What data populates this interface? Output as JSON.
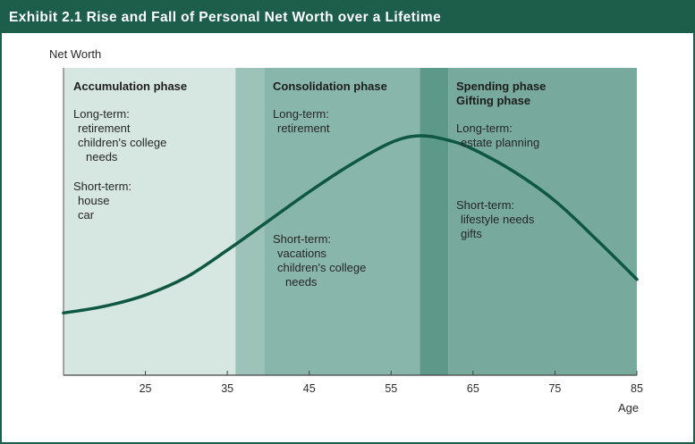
{
  "title": "Exhibit 2.1 Rise and Fall of Personal Net Worth over a Lifetime",
  "colors": {
    "frame": "#1c5e4a",
    "accumulation": "#d6e6e1",
    "transition_1": "#9dc2b7",
    "consolidation": "#89b6aa",
    "transition_2": "#5d9988",
    "spending": "#77aa9c",
    "curve": "#0e5742"
  },
  "chart_data": {
    "type": "line",
    "title": "Exhibit 2.1 Rise and Fall of Personal Net Worth over a Lifetime",
    "xlabel": "Age",
    "ylabel": "Net Worth",
    "xlim": [
      15,
      85
    ],
    "ylim": [
      0,
      100
    ],
    "xticks": [
      25,
      35,
      45,
      55,
      65,
      75,
      85
    ],
    "x": [
      15,
      20,
      25,
      30,
      35,
      40,
      45,
      50,
      55,
      58.5,
      62,
      65,
      70,
      75,
      80,
      85
    ],
    "y": [
      25,
      28,
      33,
      41,
      53,
      66,
      79,
      91,
      101,
      104,
      102,
      98,
      88,
      75,
      58,
      40
    ],
    "bands": [
      {
        "phase": "Accumulation",
        "from": 15,
        "to": 36
      },
      {
        "phase": "Transition",
        "from": 36,
        "to": 39.5
      },
      {
        "phase": "Consolidation",
        "from": 39.5,
        "to": 58.5
      },
      {
        "phase": "Transition",
        "from": 58.5,
        "to": 62
      },
      {
        "phase": "Spending/Gifting",
        "from": 62,
        "to": 85
      }
    ],
    "grid": false,
    "legend": "none"
  },
  "phases": {
    "accumulation": {
      "name": "Accumulation phase",
      "long_label": "Long-term:",
      "long_items": [
        "retirement",
        "children's college",
        "needs"
      ],
      "short_label": "Short-term:",
      "short_items": [
        "house",
        "car"
      ]
    },
    "consolidation": {
      "name": "Consolidation phase",
      "long_label": "Long-term:",
      "long_items": [
        "retirement"
      ],
      "short_label": "Short-term:",
      "short_items": [
        "vacations",
        "children's college",
        "needs"
      ]
    },
    "spending": {
      "name_1": "Spending phase",
      "name_2": "Gifting phase",
      "long_label": "Long-term:",
      "long_items": [
        "estate planning"
      ],
      "short_label": "Short-term:",
      "short_items": [
        "lifestyle needs",
        "gifts"
      ]
    }
  }
}
